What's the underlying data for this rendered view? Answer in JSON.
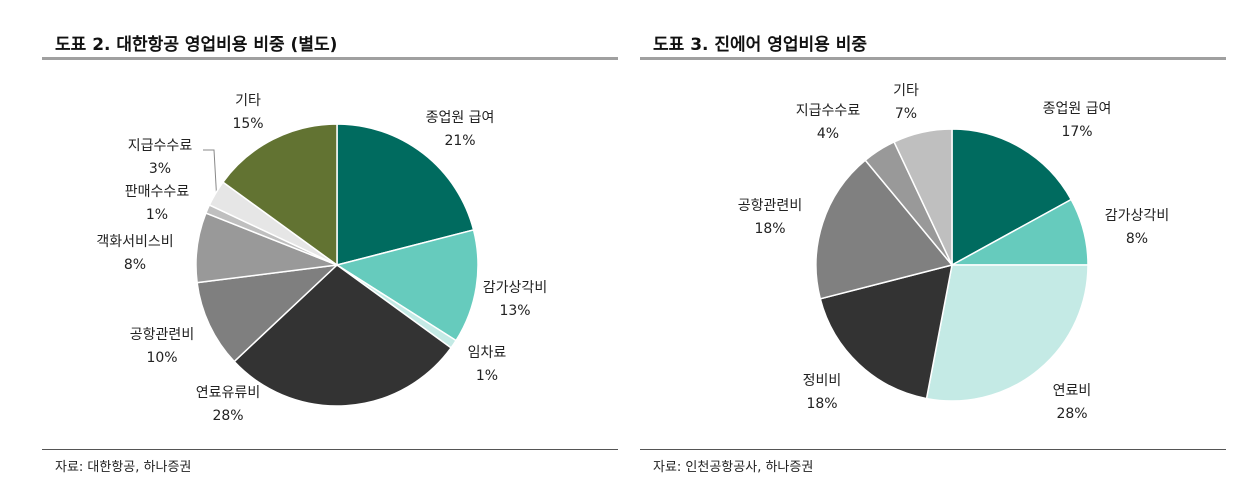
{
  "chart_data": [
    {
      "type": "pie",
      "title": "도표 2. 대한항공 영업비용 비중 (별도)",
      "source": "자료: 대한항공, 하나증권",
      "slices": [
        {
          "label": "종업원 급여",
          "value": 21,
          "pct": "21%",
          "color": "#006B5F"
        },
        {
          "label": "감가상각비",
          "value": 13,
          "pct": "13%",
          "color": "#66CBBD"
        },
        {
          "label": "임차료",
          "value": 1,
          "pct": "1%",
          "color": "#C4EAE5"
        },
        {
          "label": "연료유류비",
          "value": 28,
          "pct": "28%",
          "color": "#333333"
        },
        {
          "label": "공항관련비",
          "value": 10,
          "pct": "10%",
          "color": "#7F7F7F"
        },
        {
          "label": "객화서비스비",
          "value": 8,
          "pct": "8%",
          "color": "#999999"
        },
        {
          "label": "판매수수료",
          "value": 1,
          "pct": "1%",
          "color": "#BFBFBF"
        },
        {
          "label": "지급수수료",
          "value": 3,
          "pct": "3%",
          "color": "#E6E6E6"
        },
        {
          "label": "기타",
          "value": 15,
          "pct": "15%",
          "color": "#627332"
        }
      ]
    },
    {
      "type": "pie",
      "title": "도표 3. 진에어 영업비용 비중",
      "source": "자료: 인천공항공사, 하나증권",
      "slices": [
        {
          "label": "종업원 급여",
          "value": 17,
          "pct": "17%",
          "color": "#006B5F"
        },
        {
          "label": "감가상각비",
          "value": 8,
          "pct": "8%",
          "color": "#66CBBD"
        },
        {
          "label": "연료비",
          "value": 28,
          "pct": "28%",
          "color": "#C4EAE5"
        },
        {
          "label": "정비비",
          "value": 18,
          "pct": "18%",
          "color": "#333333"
        },
        {
          "label": "공항관련비",
          "value": 18,
          "pct": "18%",
          "color": "#808080"
        },
        {
          "label": "지급수수료",
          "value": 4,
          "pct": "4%",
          "color": "#999999"
        },
        {
          "label": "기타",
          "value": 7,
          "pct": "7%",
          "color": "#BFBFBF"
        }
      ]
    }
  ]
}
